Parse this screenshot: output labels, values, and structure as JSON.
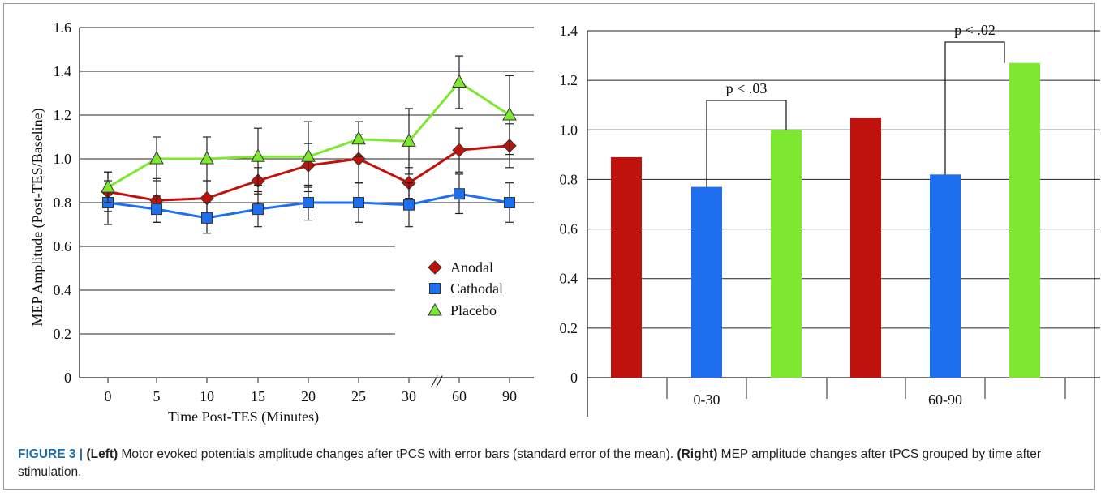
{
  "chart_data": [
    {
      "type": "line",
      "xlabel": "Time Post-TES (Minutes)",
      "ylabel": "MEP Amplitude (Post-TES/Baseline)",
      "x": [
        "0",
        "5",
        "10",
        "15",
        "20",
        "25",
        "30",
        "60",
        "90"
      ],
      "ylim": [
        0,
        1.6
      ],
      "yticks": [
        "0",
        "0.2",
        "0.4",
        "0.6",
        "0.8",
        "1.0",
        "1.2",
        "1.4",
        "1.6"
      ],
      "axis_break": "//",
      "grid": true,
      "legend_position": "bottom-right",
      "series": [
        {
          "name": "Anodal",
          "color": "#c0120c",
          "marker": "diamond",
          "values": [
            0.85,
            0.81,
            0.82,
            0.9,
            0.97,
            1.0,
            0.89,
            1.04,
            1.06
          ],
          "errors": [
            0.09,
            0.1,
            0.08,
            0.06,
            0.1,
            0.11,
            0.07,
            0.1,
            0.1
          ]
        },
        {
          "name": "Cathodal",
          "color": "#1e6ff0",
          "marker": "square",
          "values": [
            0.8,
            0.77,
            0.73,
            0.77,
            0.8,
            0.8,
            0.79,
            0.84,
            0.8
          ],
          "errors": [
            0.1,
            0.06,
            0.07,
            0.08,
            0.08,
            0.09,
            0.1,
            0.09,
            0.09
          ]
        },
        {
          "name": "Placebo",
          "color": "#7ee830",
          "marker": "triangle",
          "values": [
            0.87,
            1.0,
            1.0,
            1.01,
            1.01,
            1.09,
            1.08,
            1.35,
            1.2
          ],
          "errors": [
            0.07,
            0.1,
            0.1,
            0.13,
            0.16,
            0.08,
            0.15,
            0.12,
            0.18
          ]
        }
      ]
    },
    {
      "type": "bar",
      "categories": [
        "0-30",
        "60-90"
      ],
      "ylim": [
        0,
        1.4
      ],
      "yticks": [
        "0",
        "0.2",
        "0.4",
        "0.6",
        "0.8",
        "1.0",
        "1.2",
        "1.4"
      ],
      "grid": true,
      "series": [
        {
          "color": "#c0120c",
          "values": [
            0.89,
            1.05
          ]
        },
        {
          "color": "#1e6ff0",
          "values": [
            0.77,
            0.82
          ]
        },
        {
          "color": "#7ee830",
          "values": [
            1.0,
            1.27
          ]
        }
      ],
      "annotations": [
        {
          "text": "p < .03",
          "group": 0
        },
        {
          "text": "p < .02",
          "group": 1
        }
      ]
    }
  ],
  "caption": {
    "label": "FIGURE 3 |",
    "left_tag": "(Left)",
    "left_text": " Motor evoked potentials amplitude changes after tPCS with error bars (standard error of the mean). ",
    "right_tag": "(Right)",
    "right_text": " MEP amplitude changes after tPCS grouped by time after stimulation."
  }
}
